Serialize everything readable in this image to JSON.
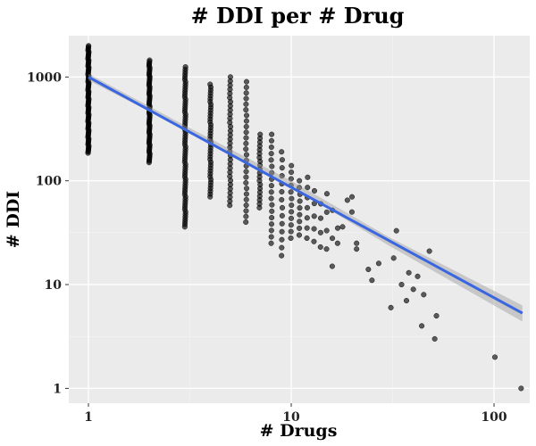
{
  "chart_data": {
    "type": "scatter",
    "title": "# DDI per # Drug",
    "xlabel": "# Drugs",
    "ylabel": "# DDI",
    "x_scale": "log10",
    "y_scale": "log10",
    "xlim": [
      0.8,
      150
    ],
    "ylim": [
      0.72,
      2500
    ],
    "x_ticks": [
      {
        "value": 1,
        "label": "1"
      },
      {
        "value": 10,
        "label": "10"
      },
      {
        "value": 100,
        "label": "100"
      }
    ],
    "y_ticks": [
      {
        "value": 1,
        "label": "1"
      },
      {
        "value": 10,
        "label": "10"
      },
      {
        "value": 100,
        "label": "100"
      },
      {
        "value": 1000,
        "label": "1000"
      }
    ],
    "grid": true,
    "background": "#ebebeb",
    "point_color": "#000000",
    "trend_color": "#3a66e0",
    "band_color": "#9c9c9c",
    "trend_line": {
      "type": "power_fit",
      "points": [
        [
          1,
          1000
        ],
        [
          138,
          5.3
        ]
      ],
      "confidence_band": [
        {
          "x": 1,
          "low": 930,
          "high": 1075
        },
        {
          "x": 3,
          "low": 310,
          "high": 340
        },
        {
          "x": 10,
          "low": 88,
          "high": 100
        },
        {
          "x": 30,
          "low": 24,
          "high": 29
        },
        {
          "x": 138,
          "low": 4.4,
          "high": 6.3
        }
      ]
    },
    "columns": [
      {
        "x": 1,
        "ymin": 185,
        "ymax": 2000,
        "count": 90
      },
      {
        "x": 2,
        "ymin": 150,
        "ymax": 1450,
        "count": 70
      },
      {
        "x": 3,
        "ymin": 36,
        "ymax": 1250,
        "count": 65
      },
      {
        "x": 4,
        "ymin": 70,
        "ymax": 850,
        "count": 40
      },
      {
        "x": 5,
        "ymin": 58,
        "ymax": 1000,
        "count": 32
      },
      {
        "x": 6,
        "ymin": 40,
        "ymax": 900,
        "count": 26
      },
      {
        "x": 7,
        "ymin": 55,
        "ymax": 280,
        "count": 20
      },
      {
        "x": 8,
        "ymin": 25,
        "ymax": 280,
        "count": 18
      },
      {
        "x": 9,
        "ymin": 19,
        "ymax": 190,
        "count": 14
      },
      {
        "x": 10,
        "ymin": 28,
        "ymax": 140,
        "count": 12
      },
      {
        "x": 11,
        "ymin": 30,
        "ymax": 100,
        "count": 9
      },
      {
        "x": 12,
        "ymin": 28,
        "ymax": 108,
        "count": 7
      },
      {
        "x": 13,
        "ymin": 26,
        "ymax": 80,
        "count": 5
      },
      {
        "x": 14,
        "ymin": 23,
        "ymax": 60,
        "count": 4
      },
      {
        "x": 15,
        "ymin": 22,
        "ymax": 75,
        "count": 4
      },
      {
        "x": 16,
        "ymin": 15,
        "ymax": 52,
        "count": 3
      },
      {
        "x": 17,
        "ymin": 25,
        "ymax": 35,
        "count": 2
      },
      {
        "x": 18,
        "ymin": 36,
        "ymax": 36,
        "count": 1
      },
      {
        "x": 19,
        "ymin": 65,
        "ymax": 65,
        "count": 1
      },
      {
        "x": 20,
        "ymin": 50,
        "ymax": 70,
        "count": 2
      }
    ],
    "points": [
      [
        21,
        25
      ],
      [
        21,
        22
      ],
      [
        24,
        14
      ],
      [
        25,
        11
      ],
      [
        27,
        16
      ],
      [
        31,
        6
      ],
      [
        32,
        18
      ],
      [
        33,
        33
      ],
      [
        35,
        10
      ],
      [
        37,
        7
      ],
      [
        38,
        13
      ],
      [
        40,
        9
      ],
      [
        42,
        12
      ],
      [
        44,
        4
      ],
      [
        45,
        8
      ],
      [
        48,
        21
      ],
      [
        51,
        3
      ],
      [
        52,
        5
      ],
      [
        101,
        2
      ],
      [
        136,
        1
      ]
    ]
  }
}
